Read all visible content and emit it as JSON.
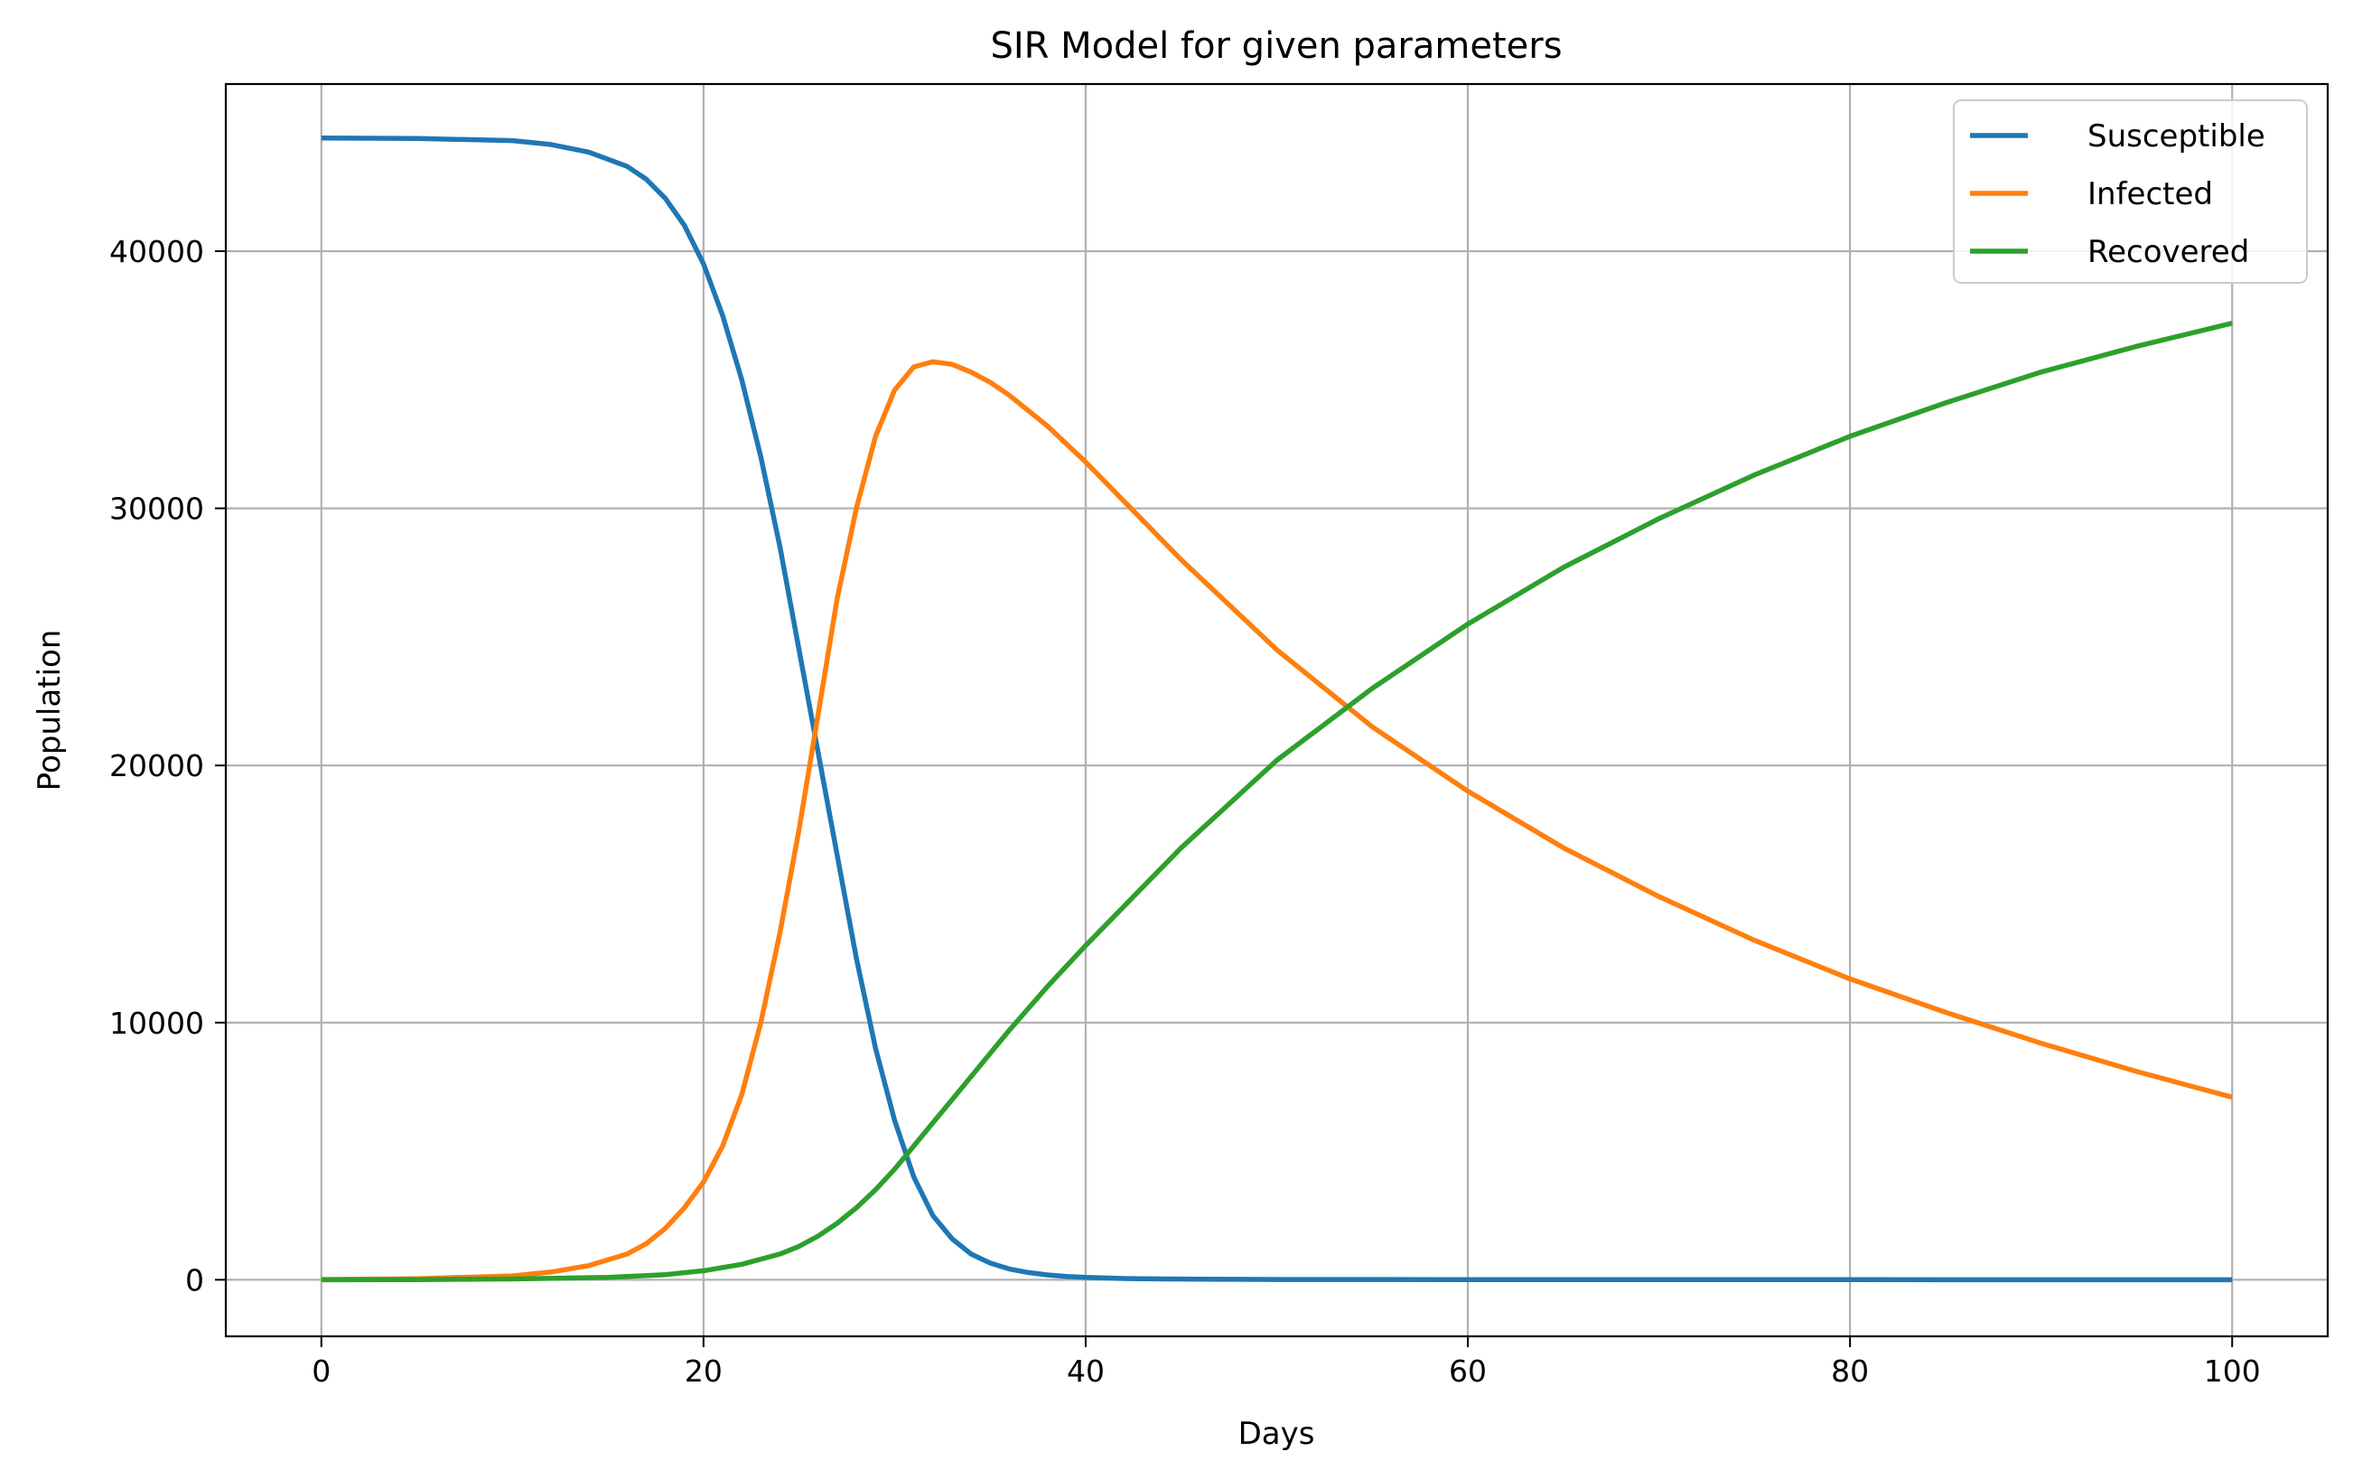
{
  "chart_data": {
    "type": "line",
    "title": "SIR Model for given parameters",
    "xlabel": "Days",
    "ylabel": "Population",
    "xlim": [
      -5,
      105
    ],
    "ylim": [
      -2200,
      46500
    ],
    "xticks": [
      0,
      20,
      40,
      60,
      80,
      100
    ],
    "yticks": [
      0,
      10000,
      20000,
      30000,
      40000
    ],
    "grid": true,
    "legend_position": "top-right",
    "series": [
      {
        "name": "Susceptible",
        "color": "#1f77b4",
        "x": [
          0,
          5,
          10,
          12,
          14,
          16,
          17,
          18,
          19,
          20,
          21,
          22,
          23,
          24,
          25,
          26,
          27,
          28,
          29,
          30,
          31,
          32,
          33,
          34,
          35,
          36,
          37,
          38,
          39,
          40,
          42,
          44,
          46,
          50,
          60,
          70,
          80,
          90,
          100
        ],
        "y": [
          44400,
          44380,
          44300,
          44150,
          43850,
          43300,
          42800,
          42050,
          41000,
          39500,
          37500,
          35000,
          32000,
          28500,
          24500,
          20500,
          16500,
          12500,
          9000,
          6200,
          4000,
          2500,
          1600,
          1000,
          650,
          420,
          280,
          190,
          130,
          90,
          50,
          30,
          20,
          10,
          5,
          3,
          2,
          1,
          1
        ]
      },
      {
        "name": "Infected",
        "color": "#ff7f0e",
        "x": [
          0,
          5,
          10,
          12,
          14,
          16,
          17,
          18,
          19,
          20,
          21,
          22,
          23,
          24,
          25,
          26,
          27,
          28,
          29,
          30,
          31,
          32,
          33,
          34,
          35,
          36,
          38,
          40,
          45,
          50,
          55,
          60,
          65,
          70,
          75,
          80,
          85,
          90,
          95,
          100
        ],
        "y": [
          10,
          40,
          150,
          300,
          550,
          1000,
          1400,
          2000,
          2800,
          3800,
          5200,
          7200,
          10000,
          13500,
          17500,
          22000,
          26500,
          30000,
          32800,
          34600,
          35500,
          35700,
          35600,
          35300,
          34900,
          34400,
          33200,
          31800,
          28000,
          24500,
          21500,
          19000,
          16800,
          14900,
          13200,
          11700,
          10400,
          9200,
          8100,
          7100
        ]
      },
      {
        "name": "Recovered",
        "color": "#2ca02c",
        "x": [
          0,
          5,
          10,
          15,
          18,
          20,
          22,
          24,
          25,
          26,
          27,
          28,
          29,
          30,
          31,
          32,
          33,
          34,
          35,
          36,
          38,
          40,
          45,
          50,
          55,
          60,
          65,
          70,
          75,
          80,
          85,
          90,
          95,
          100
        ],
        "y": [
          0,
          5,
          30,
          90,
          200,
          350,
          600,
          1000,
          1300,
          1700,
          2200,
          2800,
          3500,
          4300,
          5200,
          6100,
          7000,
          7900,
          8800,
          9700,
          11400,
          13000,
          16800,
          20200,
          23000,
          25500,
          27700,
          29600,
          31300,
          32800,
          34100,
          35300,
          36300,
          37200
        ]
      }
    ]
  }
}
